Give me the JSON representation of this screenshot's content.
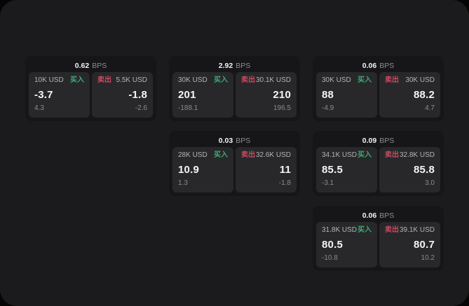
{
  "colors": {
    "page_bg": "#1b1b1d",
    "card_bg": "#161618",
    "panel_bg": "#28282a",
    "buy_green": "#3cab72",
    "sell_red": "#ca4a5e"
  },
  "cards": [
    {
      "row": 1,
      "col": 1,
      "bps": "0.62",
      "bps_unit": "BPS",
      "buy": {
        "size": "10K USD",
        "side": "买入",
        "price": "-3.7",
        "delta": "4.3"
      },
      "sell": {
        "side": "卖出",
        "size": "5.5K USD",
        "price": "-1.8",
        "delta": "-2.6"
      }
    },
    {
      "row": 1,
      "col": 2,
      "bps": "2.92",
      "bps_unit": "BPS",
      "buy": {
        "size": "30K USD",
        "side": "买入",
        "price": "201",
        "delta": "-188.1"
      },
      "sell": {
        "side": "卖出",
        "size": "30.1K USD",
        "price": "210",
        "delta": "196.5"
      }
    },
    {
      "row": 1,
      "col": 3,
      "bps": "0.06",
      "bps_unit": "BPS",
      "buy": {
        "size": "30K USD",
        "side": "买入",
        "price": "88",
        "delta": "-4.9"
      },
      "sell": {
        "side": "卖出",
        "size": "30K USD",
        "price": "88.2",
        "delta": "4.7"
      }
    },
    {
      "row": 2,
      "col": 2,
      "bps": "0.03",
      "bps_unit": "BPS",
      "buy": {
        "size": "28K USD",
        "side": "买入",
        "price": "10.9",
        "delta": "1.3"
      },
      "sell": {
        "side": "卖出",
        "size": "32.6K USD",
        "price": "11",
        "delta": "-1.8"
      }
    },
    {
      "row": 2,
      "col": 3,
      "bps": "0.09",
      "bps_unit": "BPS",
      "buy": {
        "size": "34.1K USD",
        "side": "买入",
        "price": "85.5",
        "delta": "-3.1"
      },
      "sell": {
        "side": "卖出",
        "size": "32.8K USD",
        "price": "85.8",
        "delta": "3.0"
      }
    },
    {
      "row": 3,
      "col": 3,
      "bps": "0.06",
      "bps_unit": "BPS",
      "buy": {
        "size": "31.8K USD",
        "side": "买入",
        "price": "80.5",
        "delta": "-10.8"
      },
      "sell": {
        "side": "卖出",
        "size": "39.1K USD",
        "price": "80.7",
        "delta": "10.2"
      }
    }
  ]
}
